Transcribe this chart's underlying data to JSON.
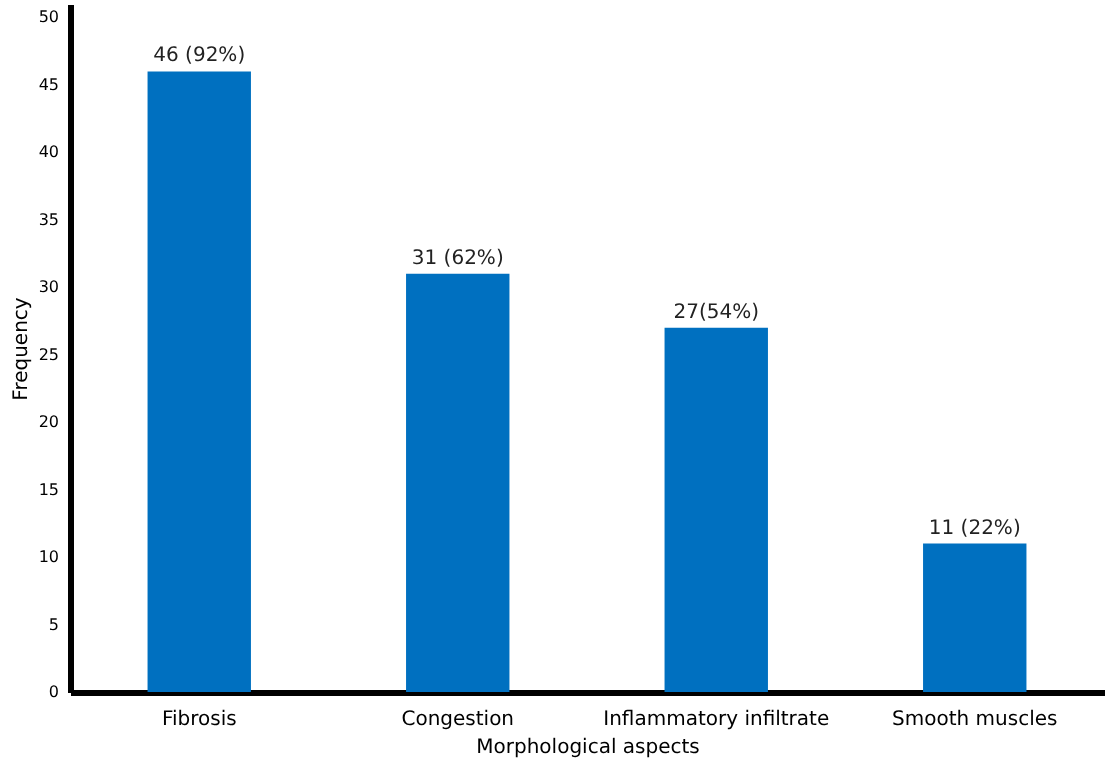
{
  "chart_data": {
    "type": "bar",
    "xlabel": "Morphological aspects",
    "ylabel": "Frequency",
    "categories": [
      "Fibrosis",
      "Congestion",
      "Inflammatory infiltrate",
      "Smooth muscles"
    ],
    "values": [
      46,
      31,
      27,
      11
    ],
    "color": "#0070c0",
    "value_labels": [
      "46 (92%)",
      "31 (62%)",
      "27(54%)",
      "11 (22%)"
    ],
    "ylim": [
      0,
      51
    ],
    "yticks": [
      0,
      5,
      10,
      15,
      20,
      25,
      30,
      35,
      40,
      45,
      50
    ],
    "grid": false
  }
}
